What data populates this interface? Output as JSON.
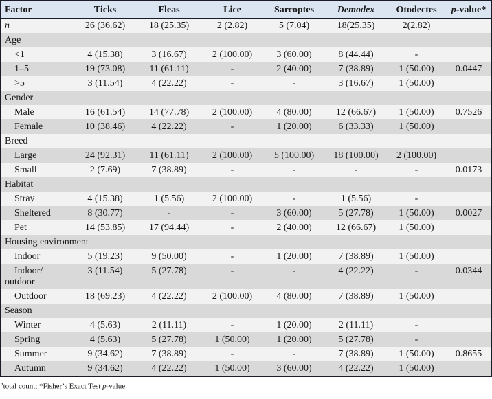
{
  "table": {
    "header": {
      "factor": "Factor",
      "ticks": "Ticks",
      "fleas": "Fleas",
      "lice": "Lice",
      "sarcoptes": "Sarcoptes",
      "demodex": "Demodex",
      "otodectes": "Otodectes",
      "pvalue_italic": "p",
      "pvalue_rest": "-value*"
    },
    "rows": [
      {
        "type": "data",
        "label": "n",
        "italic": true,
        "indent": false,
        "cells": [
          "26 (36.62)",
          "18 (25.35)",
          "2 (2.82)",
          "5 (7.04)",
          "18(25.35)",
          "2(2.82)",
          ""
        ]
      },
      {
        "type": "section",
        "label": "Age"
      },
      {
        "type": "data",
        "label": "<1",
        "indent": true,
        "cells": [
          "4 (15.38)",
          "3 (16.67)",
          "2 (100.00)",
          "3 (60.00)",
          "8 (44.44)",
          "-",
          ""
        ]
      },
      {
        "type": "data",
        "label": "1–5",
        "indent": true,
        "cells": [
          "19 (73.08)",
          "11 (61.11)",
          "-",
          "2 (40.00)",
          "7 (38.89)",
          "1 (50.00)",
          "0.0447"
        ]
      },
      {
        "type": "data",
        "label": ">5",
        "indent": true,
        "cells": [
          "3 (11.54)",
          "4 (22.22)",
          "-",
          "-",
          "3 (16.67)",
          "1 (50.00)",
          ""
        ]
      },
      {
        "type": "section",
        "label": "Gender"
      },
      {
        "type": "data",
        "label": "Male",
        "indent": true,
        "cells": [
          "16 (61.54)",
          "14 (77.78)",
          "2 (100.00)",
          "4 (80.00)",
          "12 (66.67)",
          "1 (50.00)",
          "0.7526"
        ]
      },
      {
        "type": "data",
        "label": "Female",
        "indent": true,
        "cells": [
          "10 (38.46)",
          "4 (22.22)",
          "-",
          "1 (20.00)",
          "6 (33.33)",
          "1 (50.00)",
          ""
        ]
      },
      {
        "type": "section",
        "label": "Breed"
      },
      {
        "type": "data",
        "label": "Large",
        "indent": true,
        "cells": [
          "24 (92.31)",
          "11 (61.11)",
          "2 (100.00)",
          "5 (100.00)",
          "18 (100.00)",
          "2 (100.00)",
          ""
        ]
      },
      {
        "type": "data",
        "label": "Small",
        "indent": true,
        "cells": [
          "2 (7.69)",
          "7 (38.89)",
          "-",
          "-",
          "-",
          "-",
          "0.0173"
        ]
      },
      {
        "type": "section",
        "label": "Habitat"
      },
      {
        "type": "data",
        "label": "Stray",
        "indent": true,
        "cells": [
          "4 (15.38)",
          "1 (5.56)",
          "2 (100.00)",
          "-",
          "1 (5.56)",
          "-",
          ""
        ]
      },
      {
        "type": "data",
        "label": "Sheltered",
        "indent": true,
        "cells": [
          "8 (30.77)",
          "-",
          "-",
          "3 (60.00)",
          "5 (27.78)",
          "1 (50.00)",
          "0.0027"
        ]
      },
      {
        "type": "data",
        "label": "Pet",
        "indent": true,
        "cells": [
          "14 (53.85)",
          "17 (94.44)",
          "-",
          "2 (40.00)",
          "12 (66.67)",
          "1 (50.00)",
          ""
        ]
      },
      {
        "type": "section",
        "label": "Housing environment"
      },
      {
        "type": "data",
        "label": "Indoor",
        "indent": true,
        "cells": [
          "5 (19.23)",
          "9 (50.00)",
          "-",
          "1 (20.00)",
          "7 (38.89)",
          "1 (50.00)",
          ""
        ]
      },
      {
        "type": "data",
        "label": "Indoor/outdoor",
        "indent": true,
        "cells": [
          "3 (11.54)",
          "5 (27.78)",
          "-",
          "-",
          "4 (22.22)",
          "-",
          "0.0344"
        ]
      },
      {
        "type": "data",
        "label": "Outdoor",
        "indent": true,
        "cells": [
          "18 (69.23)",
          "4 (22.22)",
          "2 (100.00)",
          "4 (80.00)",
          "7 (38.89)",
          "1 (50.00)",
          ""
        ]
      },
      {
        "type": "section",
        "label": "Season"
      },
      {
        "type": "data",
        "label": "Winter",
        "indent": true,
        "cells": [
          "4 (5.63)",
          "2 (11.11)",
          "-",
          "1 (20.00)",
          "2 (11.11)",
          "-",
          ""
        ]
      },
      {
        "type": "data",
        "label": "Spring",
        "indent": true,
        "cells": [
          "4 (5.63)",
          "5 (27.78)",
          "1 (50.00)",
          "1 (20.00)",
          "5 (27.78)",
          "-",
          ""
        ]
      },
      {
        "type": "data",
        "label": "Summer",
        "indent": true,
        "cells": [
          "9 (34.62)",
          "7 (38.89)",
          "-",
          "-",
          "7 (38.89)",
          "1 (50.00)",
          "0.8655"
        ]
      },
      {
        "type": "data",
        "label": "Autumn",
        "indent": true,
        "cells": [
          "9 (34.62)",
          "4 (22.22)",
          "1 (50.00)",
          "3 (60.00)",
          "4 (22.22)",
          "1 (50.00)",
          ""
        ]
      }
    ]
  },
  "footnote": {
    "sup": "a",
    "text1": "total count; *Fisher’s Exact Test ",
    "p_italic": "p",
    "text2": "-value."
  },
  "colors": {
    "header_bg": "#dbe5f1",
    "stripe_light": "#f2f2f2",
    "stripe_dark": "#d9d9d9",
    "border": "#1c1c28",
    "text": "#1a1a1a"
  }
}
